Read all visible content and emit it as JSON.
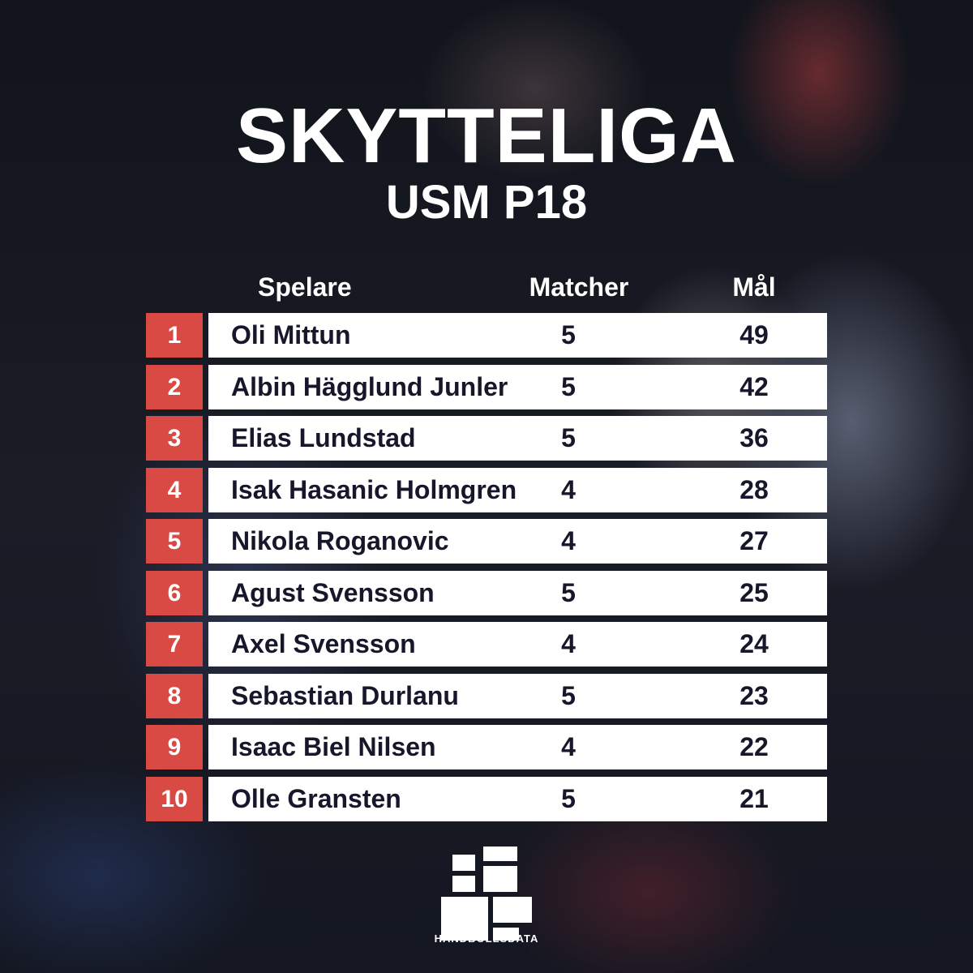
{
  "header": {
    "title": "SKYTTELIGA",
    "subtitle": "USM P18"
  },
  "table": {
    "columns": {
      "player": "Spelare",
      "matches": "Matcher",
      "goals": "Mål"
    },
    "rows": [
      {
        "rank": "1",
        "player": "Oli Mittun",
        "matches": "5",
        "goals": "49"
      },
      {
        "rank": "2",
        "player": "Albin Hägglund Junler",
        "matches": "5",
        "goals": "42"
      },
      {
        "rank": "3",
        "player": "Elias Lundstad",
        "matches": "5",
        "goals": "36"
      },
      {
        "rank": "4",
        "player": "Isak Hasanic Holmgren",
        "matches": "4",
        "goals": "28"
      },
      {
        "rank": "5",
        "player": "Nikola Roganovic",
        "matches": "4",
        "goals": "27"
      },
      {
        "rank": "6",
        "player": "Agust Svensson",
        "matches": "5",
        "goals": "25"
      },
      {
        "rank": "7",
        "player": "Axel Svensson",
        "matches": "4",
        "goals": "24"
      },
      {
        "rank": "8",
        "player": "Sebastian Durlanu",
        "matches": "5",
        "goals": "23"
      },
      {
        "rank": "9",
        "player": "Isaac Biel Nilsen",
        "matches": "4",
        "goals": "22"
      },
      {
        "rank": "10",
        "player": "Olle Gransten",
        "matches": "5",
        "goals": "21"
      }
    ]
  },
  "branding": {
    "logo_text": "HANDBOLLSDATA",
    "logo_icon": "handbollsdata-blocks-logo"
  },
  "colors": {
    "rank_background": "#d94a45",
    "row_background": "#ffffff",
    "row_text": "#17172b",
    "title_text": "#ffffff"
  }
}
